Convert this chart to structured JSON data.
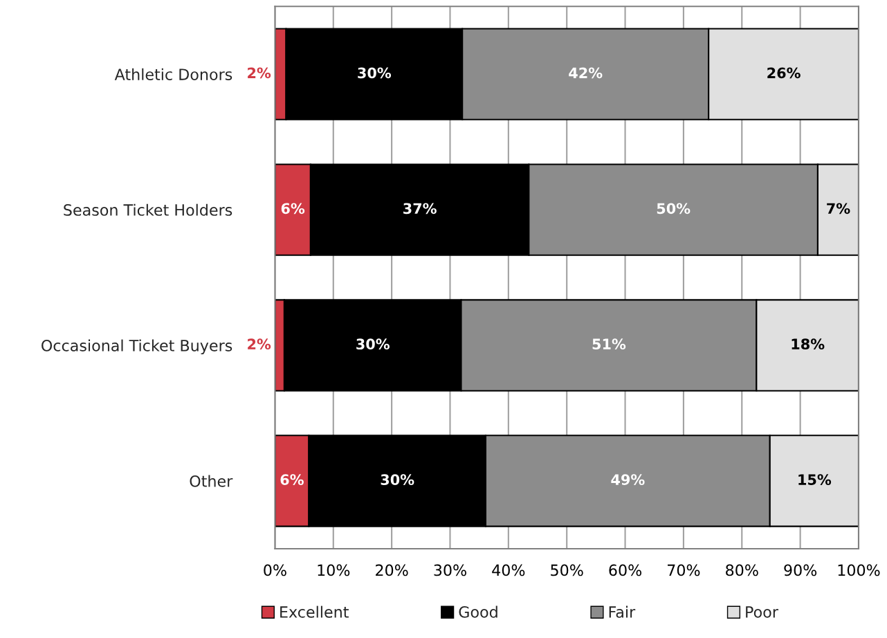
{
  "chart_data": {
    "type": "bar",
    "orientation": "horizontal",
    "stacked": true,
    "categories": [
      "Athletic Donors",
      "Season Ticket Holders",
      "Occasional Ticket Buyers",
      "Other"
    ],
    "series": [
      {
        "name": "Excellent",
        "color": "#d13a44",
        "values": [
          1.9,
          6.1,
          1.6,
          5.8
        ],
        "value_labels": [
          "2%",
          "6%",
          "2%",
          "6%"
        ]
      },
      {
        "name": "Good",
        "color": "#000000",
        "values": [
          30.2,
          37.4,
          30.3,
          30.3
        ],
        "value_labels": [
          "30%",
          "37%",
          "30%",
          "30%"
        ]
      },
      {
        "name": "Fair",
        "color": "#8c8c8c",
        "values": [
          42.2,
          49.5,
          50.6,
          48.7
        ],
        "value_labels": [
          "42%",
          "50%",
          "51%",
          "49%"
        ]
      },
      {
        "name": "Poor",
        "color": "#e0e0e0",
        "values": [
          25.7,
          7.0,
          17.5,
          15.2
        ],
        "value_labels": [
          "26%",
          "7%",
          "18%",
          "15%"
        ]
      }
    ],
    "xlim": [
      0,
      100
    ],
    "xticks": [
      {
        "value": 0,
        "label": "0%"
      },
      {
        "value": 10,
        "label": "10%"
      },
      {
        "value": 20,
        "label": "20%"
      },
      {
        "value": 30,
        "label": "30%"
      },
      {
        "value": 40,
        "label": "40%"
      },
      {
        "value": 50,
        "label": "50%"
      },
      {
        "value": 60,
        "label": "60%"
      },
      {
        "value": 70,
        "label": "70%"
      },
      {
        "value": 80,
        "label": "80%"
      },
      {
        "value": 90,
        "label": "90%"
      },
      {
        "value": 100,
        "label": "100%"
      }
    ],
    "grid": "x",
    "legend": "bottom"
  }
}
